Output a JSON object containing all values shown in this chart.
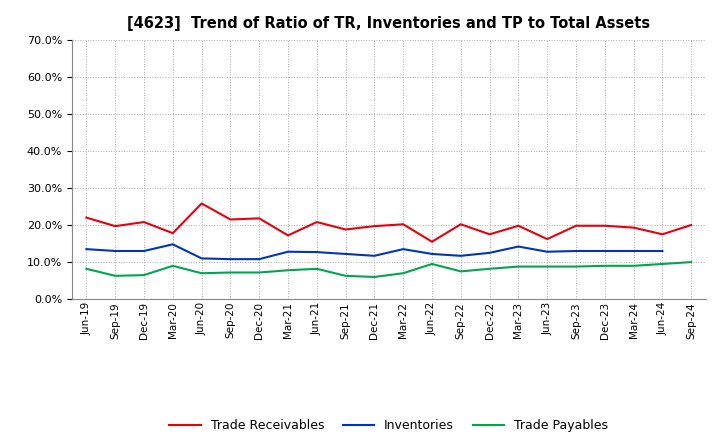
{
  "title": "[4623]  Trend of Ratio of TR, Inventories and TP to Total Assets",
  "x_labels": [
    "Jun-19",
    "Sep-19",
    "Dec-19",
    "Mar-20",
    "Jun-20",
    "Sep-20",
    "Dec-20",
    "Mar-21",
    "Jun-21",
    "Sep-21",
    "Dec-21",
    "Mar-22",
    "Jun-22",
    "Sep-22",
    "Dec-22",
    "Mar-23",
    "Jun-23",
    "Sep-23",
    "Dec-23",
    "Mar-24",
    "Jun-24",
    "Sep-24"
  ],
  "trade_receivables": [
    0.22,
    0.197,
    0.208,
    0.178,
    0.258,
    0.215,
    0.218,
    0.172,
    0.208,
    0.188,
    0.197,
    0.202,
    0.155,
    0.202,
    0.175,
    0.198,
    0.162,
    0.198,
    0.198,
    0.193,
    0.175,
    0.2
  ],
  "inventories": [
    0.135,
    0.13,
    0.13,
    0.148,
    0.11,
    0.108,
    0.108,
    0.128,
    0.127,
    0.122,
    0.117,
    0.135,
    0.122,
    0.117,
    0.125,
    0.142,
    0.128,
    0.13,
    0.13,
    0.13,
    0.13,
    null
  ],
  "trade_payables": [
    0.082,
    0.063,
    0.065,
    0.09,
    0.07,
    0.072,
    0.072,
    0.078,
    0.082,
    0.063,
    0.06,
    0.07,
    0.095,
    0.075,
    0.082,
    0.088,
    0.088,
    0.088,
    0.09,
    0.09,
    0.095,
    0.1
  ],
  "tr_color": "#e8000d",
  "inv_color": "#0034bf",
  "tp_color": "#00a550",
  "ylim": [
    0.0,
    0.7
  ],
  "yticks": [
    0.0,
    0.1,
    0.2,
    0.3,
    0.4,
    0.5,
    0.6,
    0.7
  ],
  "bg_color": "#ffffff",
  "grid_color": "#aaaaaa",
  "legend_labels": [
    "Trade Receivables",
    "Inventories",
    "Trade Payables"
  ]
}
